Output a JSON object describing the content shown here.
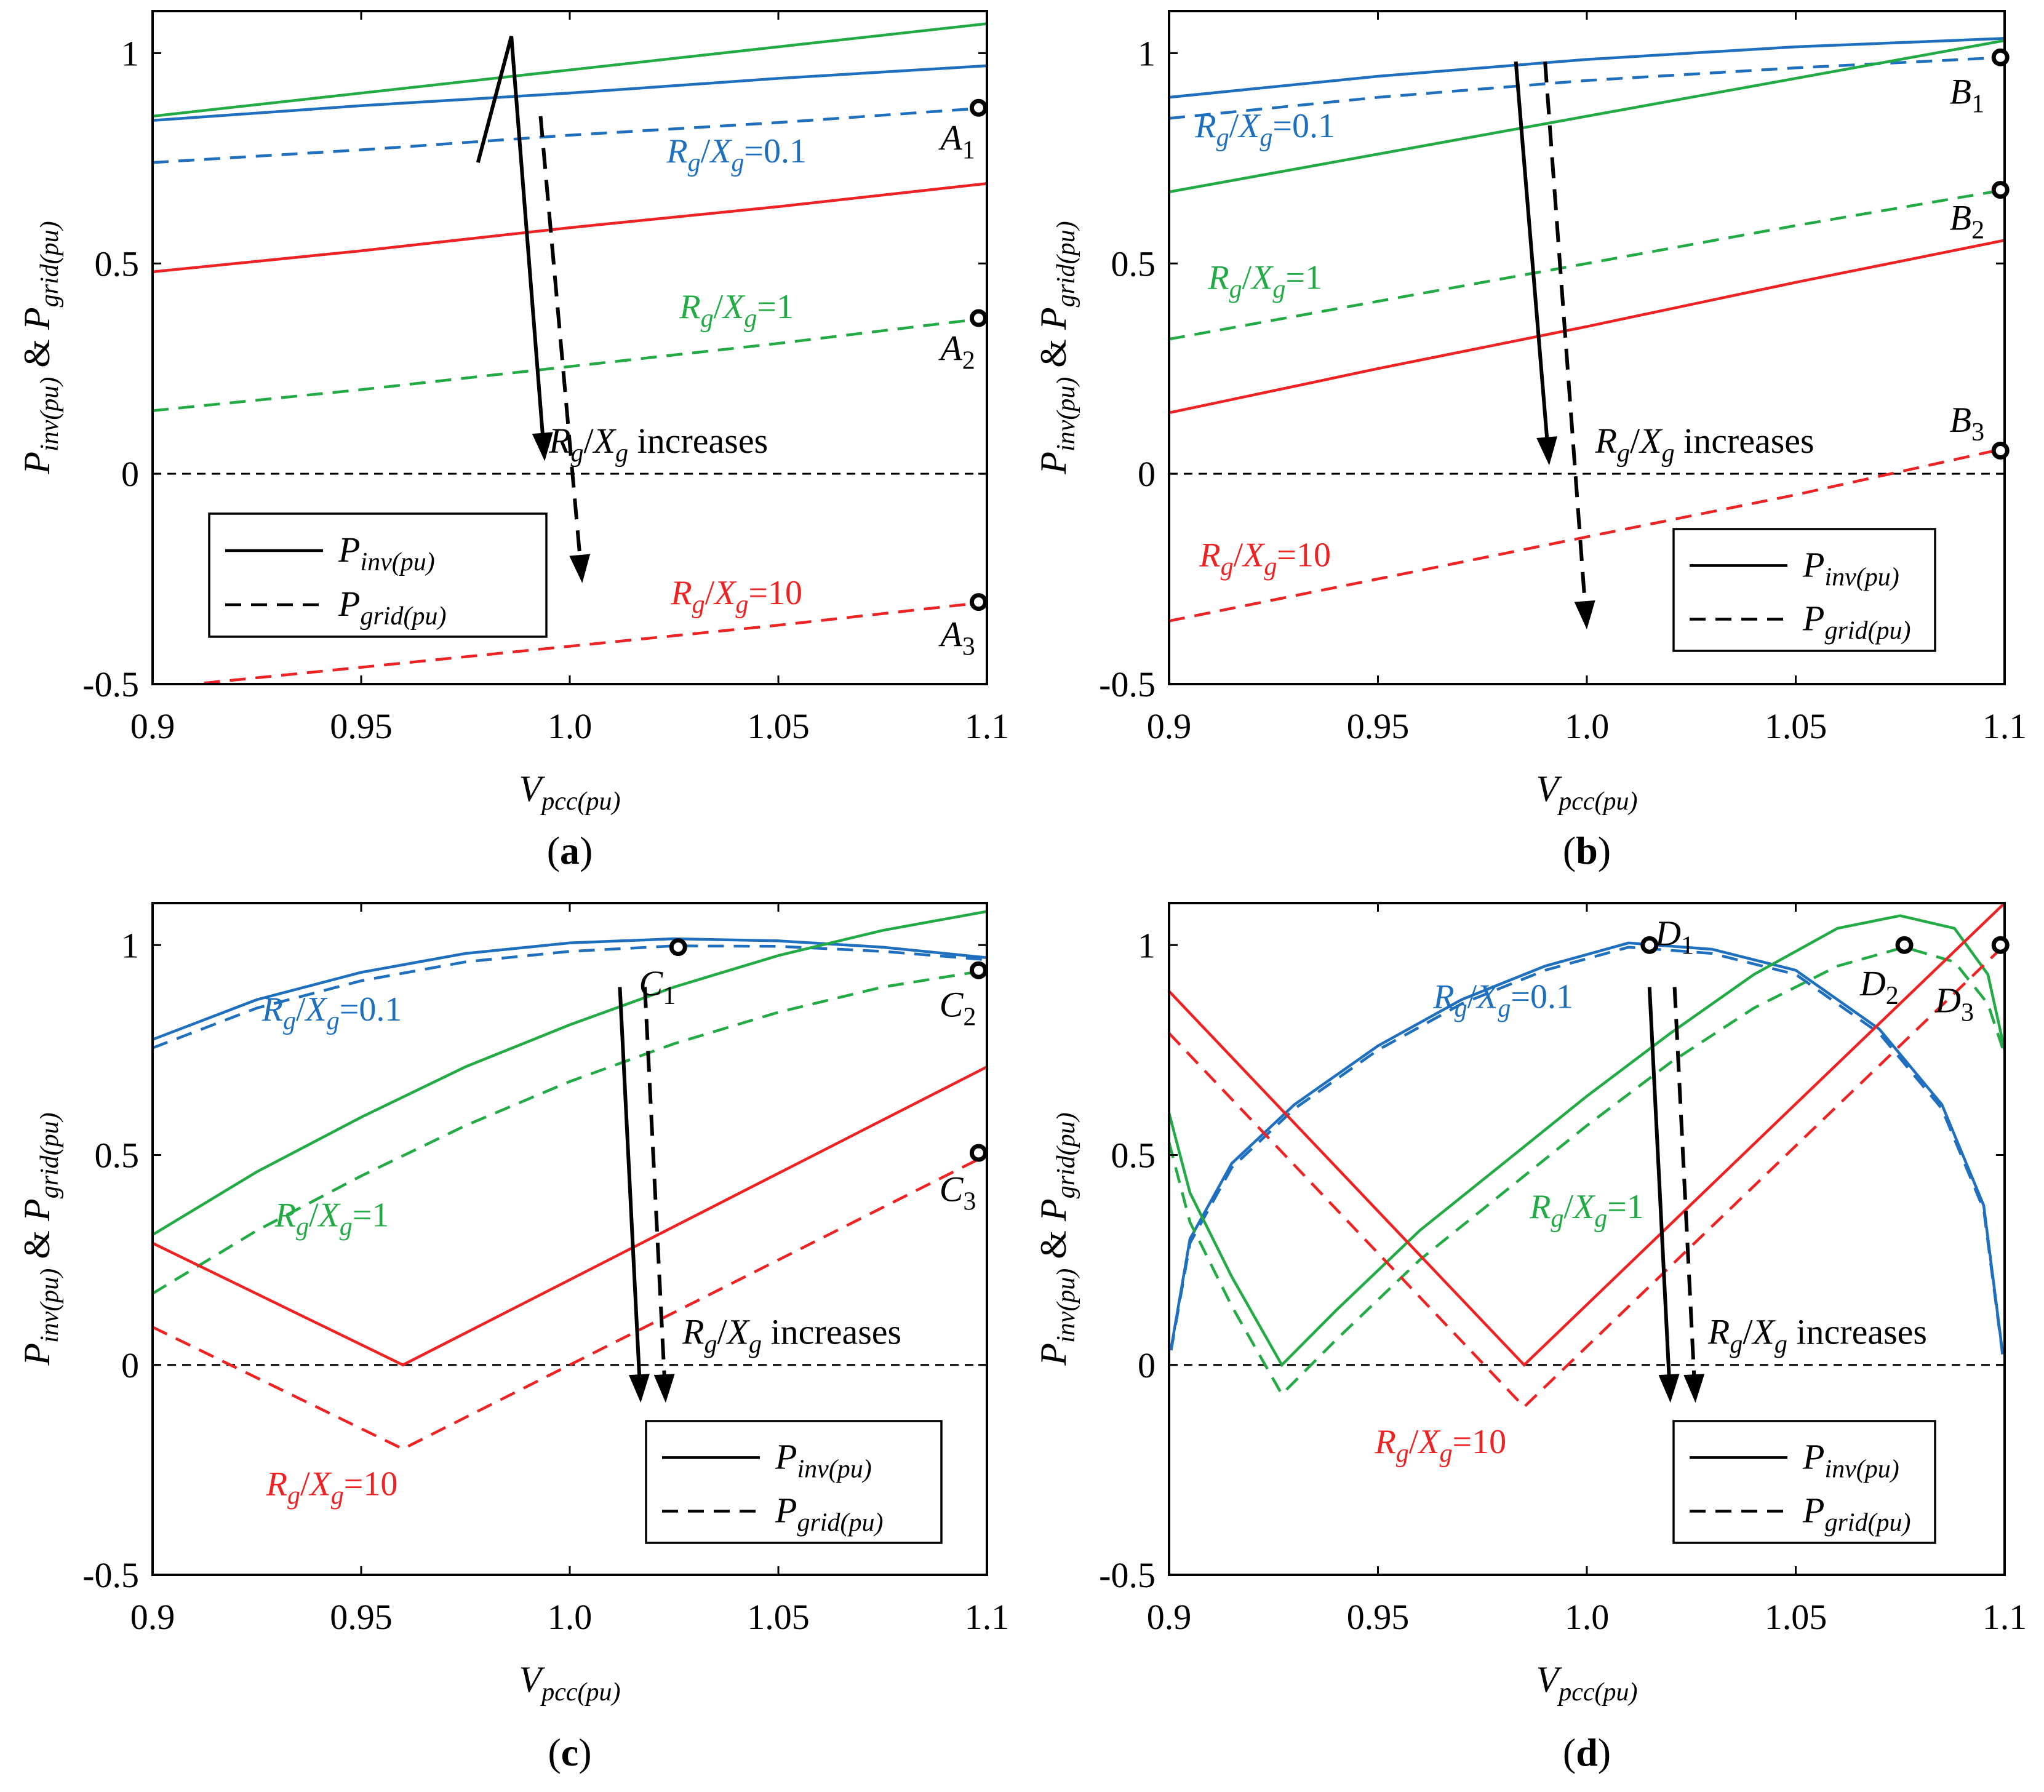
{
  "colors": {
    "blue": "#1f6fbf",
    "green": "#22aa44",
    "red": "#ee2222",
    "black": "#000000"
  },
  "chart_data": [
    {
      "panel": "a",
      "type": "line",
      "caption_letter": "a",
      "xlim": [
        0.9,
        1.1
      ],
      "ylim": [
        -0.5,
        1.1
      ],
      "xticks": [
        "0.9",
        "0.95",
        "1.0",
        "1.05",
        "1.1"
      ],
      "yticks": [
        "-0.5",
        "0",
        "0.5",
        "1"
      ],
      "ylabel": {
        "p1": "P",
        "s1": "inv(pu)",
        "amp": " & ",
        "p2": "P",
        "s2": "grid(pu)"
      },
      "xlabel": {
        "v": "V",
        "s": "pcc(pu)"
      },
      "legend": {
        "solid": {
          "name": "P",
          "sub": "inv(pu)"
        },
        "dashed": {
          "name": "P",
          "sub": "grid(pu)"
        },
        "position": "bottom-left"
      },
      "series": [
        {
          "name": "P_inv Rg/Xg=0.1",
          "color": "blue",
          "style": "solid",
          "x": [
            0.9,
            0.95,
            1.0,
            1.05,
            1.1
          ],
          "y": [
            0.84,
            0.875,
            0.905,
            0.94,
            0.97
          ]
        },
        {
          "name": "P_grid Rg/Xg=0.1",
          "color": "blue",
          "style": "dashed",
          "x": [
            0.9,
            0.95,
            1.0,
            1.05,
            1.1
          ],
          "y": [
            0.74,
            0.77,
            0.805,
            0.835,
            0.87
          ]
        },
        {
          "name": "P_inv Rg/Xg=1",
          "color": "green",
          "style": "solid",
          "x": [
            0.9,
            0.95,
            1.0,
            1.05,
            1.1
          ],
          "y": [
            0.85,
            0.905,
            0.96,
            1.015,
            1.07
          ]
        },
        {
          "name": "P_grid Rg/Xg=1",
          "color": "green",
          "style": "dashed",
          "x": [
            0.9,
            0.95,
            1.0,
            1.05,
            1.1
          ],
          "y": [
            0.15,
            0.2,
            0.255,
            0.31,
            0.37
          ]
        },
        {
          "name": "P_inv Rg/Xg=10",
          "color": "red",
          "style": "solid",
          "x": [
            0.9,
            0.95,
            1.0,
            1.05,
            1.1
          ],
          "y": [
            0.48,
            0.53,
            0.585,
            0.635,
            0.69
          ]
        },
        {
          "name": "P_grid Rg/Xg=10",
          "color": "red",
          "style": "dashed",
          "x": [
            0.9,
            0.95,
            1.0,
            1.05,
            1.1
          ],
          "y": [
            -0.51,
            -0.46,
            -0.41,
            -0.36,
            -0.305
          ]
        }
      ],
      "curve_labels": [
        {
          "color": "blue",
          "value": "0.1",
          "x": 1.04,
          "y": 0.74
        },
        {
          "color": "green",
          "value": "1",
          "x": 1.04,
          "y": 0.37
        },
        {
          "color": "red",
          "value": "10",
          "x": 1.04,
          "y": -0.31
        }
      ],
      "points": [
        {
          "letter": "A",
          "sub": "1",
          "x": 1.098,
          "y": 0.87,
          "lx": 1.093,
          "ly": 0.77
        },
        {
          "letter": "A",
          "sub": "2",
          "x": 1.098,
          "y": 0.37,
          "lx": 1.093,
          "ly": 0.27
        },
        {
          "letter": "A",
          "sub": "3",
          "x": 1.098,
          "y": -0.305,
          "lx": 1.093,
          "ly": -0.41
        }
      ],
      "arrows": [
        {
          "style": "solid",
          "x1": 0.978,
          "y1": 0.74,
          "xm": 0.986,
          "ym": 1.04,
          "x2": 0.994,
          "y2": 0.03
        },
        {
          "style": "dashed",
          "x1": 0.993,
          "y1": 0.85,
          "x2": 1.003,
          "y2": -0.26
        }
      ],
      "annotation": {
        "text": " increases",
        "x": 0.995,
        "y": 0.05
      }
    },
    {
      "panel": "b",
      "type": "line",
      "caption_letter": "b",
      "xlim": [
        0.9,
        1.1
      ],
      "ylim": [
        -0.5,
        1.1
      ],
      "xticks": [
        "0.9",
        "0.95",
        "1.0",
        "1.05",
        "1.1"
      ],
      "yticks": [
        "-0.5",
        "0",
        "0.5",
        "1"
      ],
      "ylabel": {
        "p1": "P",
        "s1": "inv(pu)",
        "amp": " & ",
        "p2": "P",
        "s2": "grid(pu)"
      },
      "xlabel": {
        "v": "V",
        "s": "pcc(pu)"
      },
      "legend": {
        "solid": {
          "name": "P",
          "sub": "inv(pu)"
        },
        "dashed": {
          "name": "P",
          "sub": "grid(pu)"
        },
        "position": "bottom-right"
      },
      "series": [
        {
          "name": "P_inv Rg/Xg=0.1",
          "color": "blue",
          "style": "solid",
          "x": [
            0.9,
            0.95,
            1.0,
            1.05,
            1.1
          ],
          "y": [
            0.895,
            0.945,
            0.985,
            1.015,
            1.035
          ]
        },
        {
          "name": "P_grid Rg/Xg=0.1",
          "color": "blue",
          "style": "dashed",
          "x": [
            0.9,
            0.95,
            1.0,
            1.05,
            1.1
          ],
          "y": [
            0.845,
            0.895,
            0.935,
            0.965,
            0.99
          ]
        },
        {
          "name": "P_inv Rg/Xg=1",
          "color": "green",
          "style": "solid",
          "x": [
            0.9,
            0.95,
            1.0,
            1.05,
            1.1
          ],
          "y": [
            0.67,
            0.76,
            0.85,
            0.94,
            1.03
          ]
        },
        {
          "name": "P_grid Rg/Xg=1",
          "color": "green",
          "style": "dashed",
          "x": [
            0.9,
            0.95,
            1.0,
            1.05,
            1.1
          ],
          "y": [
            0.32,
            0.41,
            0.5,
            0.59,
            0.675
          ]
        },
        {
          "name": "P_inv Rg/Xg=10",
          "color": "red",
          "style": "solid",
          "x": [
            0.9,
            0.95,
            1.0,
            1.05,
            1.1
          ],
          "y": [
            0.145,
            0.25,
            0.35,
            0.455,
            0.555
          ]
        },
        {
          "name": "P_grid Rg/Xg=10",
          "color": "red",
          "style": "dashed",
          "x": [
            0.9,
            0.95,
            1.0,
            1.05,
            1.1
          ],
          "y": [
            -0.35,
            -0.25,
            -0.15,
            -0.05,
            0.06
          ]
        }
      ],
      "curve_labels": [
        {
          "color": "blue",
          "value": "0.1",
          "x": 0.923,
          "y": 0.8
        },
        {
          "color": "green",
          "value": "1",
          "x": 0.923,
          "y": 0.44
        },
        {
          "color": "red",
          "value": "10",
          "x": 0.923,
          "y": -0.22
        }
      ],
      "points": [
        {
          "letter": "B",
          "sub": "1",
          "x": 1.099,
          "y": 0.99,
          "lx": 1.091,
          "ly": 0.88
        },
        {
          "letter": "B",
          "sub": "2",
          "x": 1.099,
          "y": 0.675,
          "lx": 1.091,
          "ly": 0.58
        },
        {
          "letter": "B",
          "sub": "3",
          "x": 1.099,
          "y": 0.055,
          "lx": 1.091,
          "ly": 0.1
        }
      ],
      "arrows": [
        {
          "style": "solid",
          "x1": 0.983,
          "y1": 0.98,
          "x2": 0.991,
          "y2": 0.02
        },
        {
          "style": "dashed",
          "x1": 0.99,
          "y1": 0.98,
          "x2": 1.0,
          "y2": -0.37
        }
      ],
      "annotation": {
        "text": " increases",
        "x": 1.002,
        "y": 0.05
      }
    },
    {
      "panel": "c",
      "type": "line",
      "caption_letter": "c",
      "xlim": [
        0.9,
        1.1
      ],
      "ylim": [
        -0.5,
        1.1
      ],
      "xticks": [
        "0.9",
        "0.95",
        "1.0",
        "1.05",
        "1.1"
      ],
      "yticks": [
        "-0.5",
        "0",
        "0.5",
        "1"
      ],
      "ylabel": {
        "p1": "P",
        "s1": "inv(pu)",
        "amp": " & ",
        "p2": "P",
        "s2": "grid(pu)"
      },
      "xlabel": {
        "v": "V",
        "s": "pcc(pu)"
      },
      "legend": {
        "solid": {
          "name": "P",
          "sub": "inv(pu)"
        },
        "dashed": {
          "name": "P",
          "sub": "grid(pu)"
        },
        "position": "bottom-right"
      },
      "series": [
        {
          "name": "P_inv Rg/Xg=0.1",
          "color": "blue",
          "style": "solid",
          "x": [
            0.9,
            0.925,
            0.95,
            0.975,
            1.0,
            1.025,
            1.05,
            1.075,
            1.1
          ],
          "y": [
            0.775,
            0.87,
            0.935,
            0.98,
            1.005,
            1.015,
            1.01,
            0.995,
            0.97
          ]
        },
        {
          "name": "P_grid Rg/Xg=0.1",
          "color": "blue",
          "style": "dashed",
          "x": [
            0.9,
            0.925,
            0.95,
            0.975,
            1.0,
            1.025,
            1.05,
            1.075,
            1.1
          ],
          "y": [
            0.755,
            0.85,
            0.915,
            0.96,
            0.985,
            0.998,
            0.997,
            0.985,
            0.965
          ]
        },
        {
          "name": "P_inv Rg/Xg=1",
          "color": "green",
          "style": "solid",
          "x": [
            0.9,
            0.925,
            0.95,
            0.975,
            1.0,
            1.025,
            1.05,
            1.075,
            1.1
          ],
          "y": [
            0.31,
            0.46,
            0.59,
            0.71,
            0.81,
            0.9,
            0.975,
            1.035,
            1.08
          ]
        },
        {
          "name": "P_grid Rg/Xg=1",
          "color": "green",
          "style": "dashed",
          "x": [
            0.9,
            0.925,
            0.95,
            0.975,
            1.0,
            1.025,
            1.05,
            1.075,
            1.1
          ],
          "y": [
            0.17,
            0.32,
            0.45,
            0.57,
            0.675,
            0.765,
            0.84,
            0.9,
            0.94
          ]
        },
        {
          "name": "P_inv Rg/Xg=10",
          "color": "red",
          "style": "solid",
          "x": [
            0.9,
            0.96,
            1.1
          ],
          "y": [
            0.29,
            0.0,
            0.71
          ]
        },
        {
          "name": "P_grid Rg/Xg=10",
          "color": "red",
          "style": "dashed",
          "x": [
            0.9,
            0.96,
            1.1
          ],
          "y": [
            0.09,
            -0.2,
            0.5
          ]
        }
      ],
      "curve_labels": [
        {
          "color": "blue",
          "value": "0.1",
          "x": 0.943,
          "y": 0.82
        },
        {
          "color": "green",
          "value": "1",
          "x": 0.943,
          "y": 0.33
        },
        {
          "color": "red",
          "value": "10",
          "x": 0.943,
          "y": -0.31
        }
      ],
      "points": [
        {
          "letter": "C",
          "sub": "1",
          "x": 1.026,
          "y": 0.995,
          "lx": 1.021,
          "ly": 0.88
        },
        {
          "letter": "C",
          "sub": "2",
          "x": 1.098,
          "y": 0.94,
          "lx": 1.093,
          "ly": 0.83
        },
        {
          "letter": "C",
          "sub": "3",
          "x": 1.098,
          "y": 0.505,
          "lx": 1.093,
          "ly": 0.39
        }
      ],
      "arrows": [
        {
          "style": "solid",
          "x1": 1.012,
          "y1": 0.9,
          "x2": 1.017,
          "y2": -0.09
        },
        {
          "style": "dashed",
          "x1": 1.018,
          "y1": 0.9,
          "x2": 1.023,
          "y2": -0.09
        }
      ],
      "annotation": {
        "text": " increases",
        "x": 1.027,
        "y": 0.05
      }
    },
    {
      "panel": "d",
      "type": "line",
      "caption_letter": "d",
      "xlim": [
        0.9,
        1.1
      ],
      "ylim": [
        -0.5,
        1.1
      ],
      "xticks": [
        "0.9",
        "0.95",
        "1.0",
        "1.05",
        "1.1"
      ],
      "yticks": [
        "-0.5",
        "0",
        "0.5",
        "1"
      ],
      "ylabel": {
        "p1": "P",
        "s1": "inv(pu)",
        "amp": " & ",
        "p2": "P",
        "s2": "grid(pu)"
      },
      "xlabel": {
        "v": "V",
        "s": "pcc(pu)"
      },
      "legend": {
        "solid": {
          "name": "P",
          "sub": "inv(pu)"
        },
        "dashed": {
          "name": "P",
          "sub": "grid(pu)"
        },
        "position": "bottom-right"
      },
      "series": [
        {
          "name": "P_inv Rg/Xg=0.1",
          "color": "blue",
          "style": "solid",
          "x": [
            0.9005,
            0.905,
            0.915,
            0.93,
            0.95,
            0.97,
            0.99,
            1.01,
            1.03,
            1.05,
            1.07,
            1.085,
            1.095,
            1.0995
          ],
          "y": [
            0.04,
            0.3,
            0.48,
            0.62,
            0.76,
            0.87,
            0.95,
            1.005,
            0.99,
            0.94,
            0.8,
            0.62,
            0.38,
            0.03
          ]
        },
        {
          "name": "P_grid Rg/Xg=0.1",
          "color": "blue",
          "style": "dashed",
          "x": [
            0.9005,
            0.905,
            0.915,
            0.93,
            0.95,
            0.97,
            0.99,
            1.01,
            1.03,
            1.05,
            1.07,
            1.085,
            1.095,
            1.0995
          ],
          "y": [
            0.035,
            0.29,
            0.47,
            0.61,
            0.75,
            0.86,
            0.94,
            0.995,
            0.98,
            0.93,
            0.79,
            0.61,
            0.37,
            0.025
          ]
        },
        {
          "name": "P_inv Rg/Xg=1",
          "color": "green",
          "style": "solid",
          "x": [
            0.9,
            0.905,
            0.915,
            0.927,
            0.94,
            0.96,
            0.98,
            1.0,
            1.02,
            1.04,
            1.06,
            1.075,
            1.088,
            1.096,
            1.1
          ],
          "y": [
            0.6,
            0.41,
            0.21,
            0.0,
            0.13,
            0.32,
            0.48,
            0.64,
            0.79,
            0.93,
            1.04,
            1.07,
            1.04,
            0.93,
            0.75
          ]
        },
        {
          "name": "P_grid Rg/Xg=1",
          "color": "green",
          "style": "dashed",
          "x": [
            0.9,
            0.905,
            0.915,
            0.927,
            0.94,
            0.96,
            0.98,
            1.0,
            1.02,
            1.04,
            1.06,
            1.076,
            1.088,
            1.096,
            1.1
          ],
          "y": [
            0.53,
            0.34,
            0.14,
            -0.07,
            0.06,
            0.25,
            0.41,
            0.57,
            0.72,
            0.85,
            0.95,
            0.995,
            0.96,
            0.86,
            0.74
          ]
        },
        {
          "name": "P_inv Rg/Xg=10",
          "color": "red",
          "style": "solid",
          "x": [
            0.9,
            0.985,
            1.1
          ],
          "y": [
            0.89,
            0.0,
            1.1
          ]
        },
        {
          "name": "P_grid Rg/Xg=10",
          "color": "red",
          "style": "dashed",
          "x": [
            0.9,
            0.985,
            1.1
          ],
          "y": [
            0.79,
            -0.1,
            1.0
          ]
        }
      ],
      "curve_labels": [
        {
          "color": "blue",
          "value": "0.1",
          "x": 0.98,
          "y": 0.85
        },
        {
          "color": "green",
          "value": "1",
          "x": 1.0,
          "y": 0.35
        },
        {
          "color": "red",
          "value": "10",
          "x": 0.965,
          "y": -0.21
        }
      ],
      "points": [
        {
          "letter": "D",
          "sub": "1",
          "x": 1.015,
          "y": 1.0,
          "lx": 1.021,
          "ly": 1.0
        },
        {
          "letter": "D",
          "sub": "2",
          "x": 1.076,
          "y": 1.0,
          "lx": 1.07,
          "ly": 0.88
        },
        {
          "letter": "D",
          "sub": "3",
          "x": 1.099,
          "y": 1.0,
          "lx": 1.088,
          "ly": 0.84
        }
      ],
      "arrows": [
        {
          "style": "solid",
          "x1": 1.015,
          "y1": 0.9,
          "x2": 1.02,
          "y2": -0.09
        },
        {
          "style": "dashed",
          "x1": 1.021,
          "y1": 0.9,
          "x2": 1.026,
          "y2": -0.09
        }
      ],
      "annotation": {
        "text": " increases",
        "x": 1.029,
        "y": 0.05
      }
    }
  ],
  "ratio_label": {
    "r": "R",
    "rs": "g",
    "slash": "/",
    "x": "X",
    "xs": "g"
  }
}
